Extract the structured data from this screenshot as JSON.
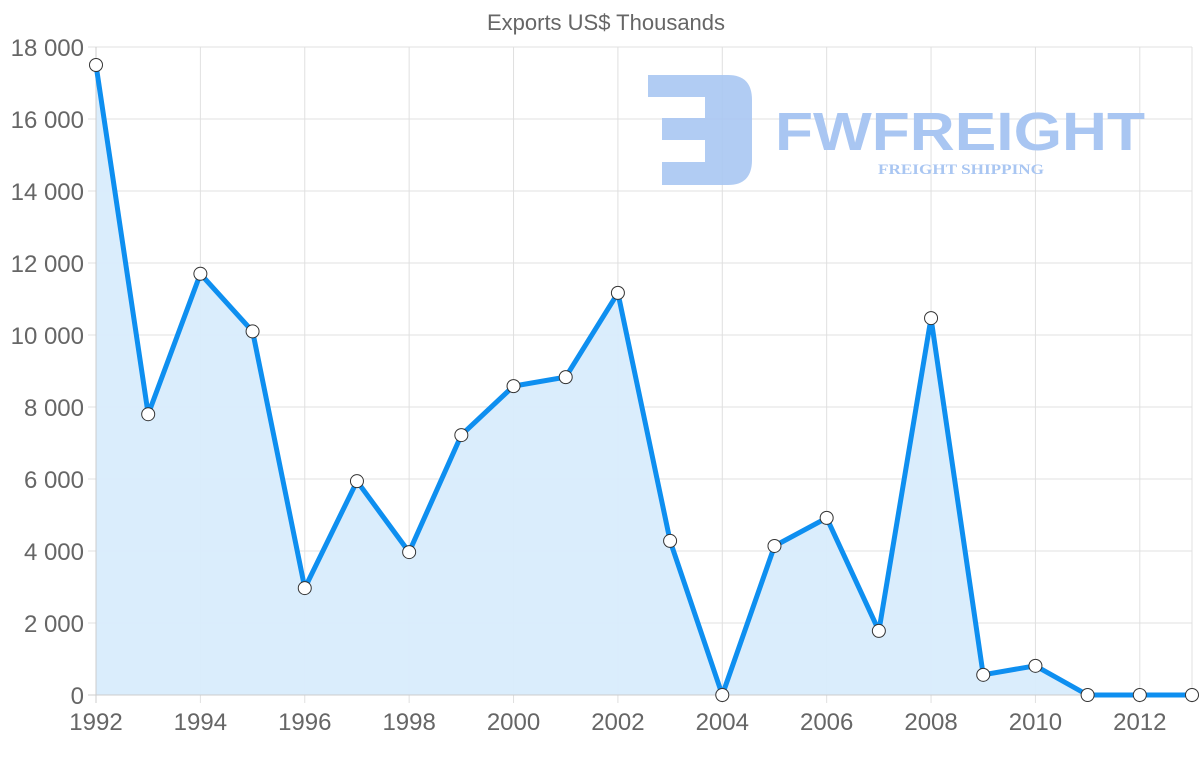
{
  "chart_data": {
    "type": "area",
    "title": "Exports US$ Thousands",
    "xlabel": "",
    "ylabel": "",
    "x": [
      1992,
      1993,
      1994,
      1995,
      1996,
      1997,
      1998,
      1999,
      2000,
      2001,
      2002,
      2003,
      2004,
      2005,
      2006,
      2007,
      2008,
      2009,
      2010,
      2011,
      2012,
      2013
    ],
    "series": [
      {
        "name": "Exports US$ Thousands",
        "values": [
          17500,
          7800,
          11700,
          10100,
          2970,
          5940,
          3970,
          7220,
          8580,
          8830,
          11170,
          4280,
          0,
          4140,
          4920,
          1780,
          10470,
          560,
          810,
          0,
          0,
          0
        ],
        "color": "#0e8ff0",
        "fill": "#d8ecfc"
      }
    ],
    "ylim": [
      0,
      18000
    ],
    "xlim": [
      1992,
      2013
    ],
    "y_ticks": [
      "0",
      "2 000",
      "4 000",
      "6 000",
      "8 000",
      "10 000",
      "12 000",
      "14 000",
      "16 000",
      "18 000"
    ],
    "x_ticks": [
      "1992",
      "1994",
      "1996",
      "1998",
      "2000",
      "2002",
      "2004",
      "2006",
      "2008",
      "2010",
      "2012"
    ],
    "grid": true,
    "legend": "none"
  },
  "watermark": {
    "brand": "FWFREIGHT",
    "tagline": "FREIGHT SHIPPING",
    "color": "#a9c6f2"
  }
}
